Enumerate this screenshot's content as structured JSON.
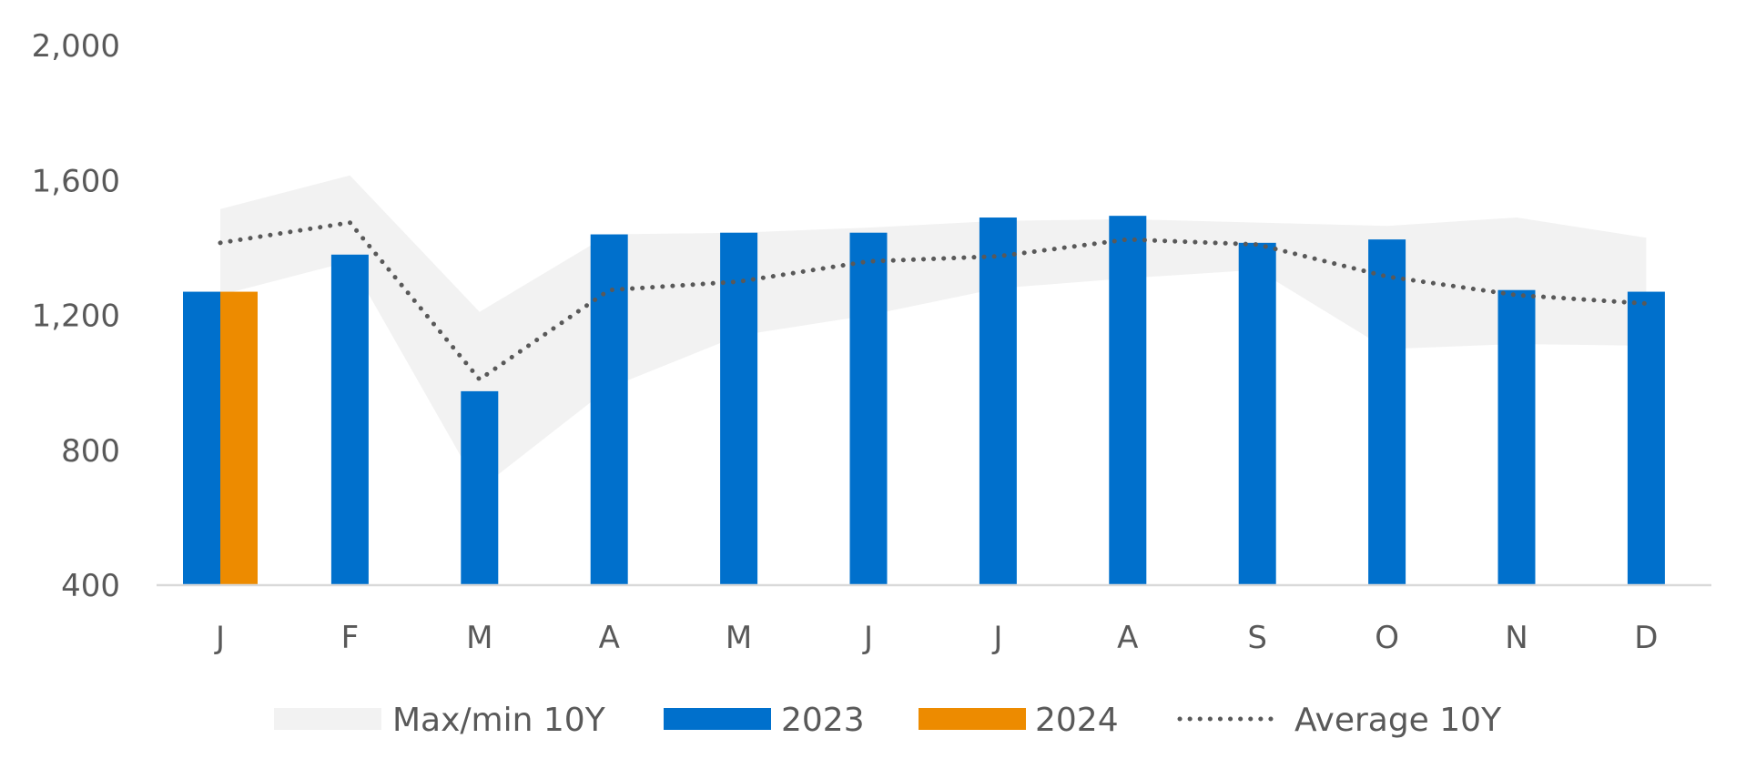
{
  "chart_data": {
    "type": "bar",
    "categories": [
      "J",
      "F",
      "M",
      "A",
      "M",
      "J",
      "J",
      "A",
      "S",
      "O",
      "N",
      "D"
    ],
    "ylim": [
      400,
      2000
    ],
    "yticks": [
      400,
      800,
      1200,
      1600,
      2000
    ],
    "ytick_labels": [
      "400",
      "800",
      "1,200",
      "1,600",
      "2,000"
    ],
    "grid": false,
    "legend_position": "bottom",
    "band": {
      "name": "Max/min 10Y",
      "color": "#f2f2f2",
      "max": [
        1515,
        1615,
        1210,
        1440,
        1445,
        1460,
        1480,
        1485,
        1475,
        1465,
        1490,
        1430
      ],
      "min": [
        1260,
        1360,
        685,
        985,
        1140,
        1200,
        1280,
        1310,
        1335,
        1100,
        1115,
        1110
      ]
    },
    "series": [
      {
        "name": "2023",
        "type": "bar",
        "color": "#0070cc",
        "values": [
          1270,
          1380,
          975,
          1440,
          1445,
          1445,
          1490,
          1495,
          1415,
          1425,
          1275,
          1270
        ]
      },
      {
        "name": "2024",
        "type": "bar",
        "color": "#ed8b00",
        "values": [
          1270,
          null,
          null,
          null,
          null,
          null,
          null,
          null,
          null,
          null,
          null,
          null
        ]
      },
      {
        "name": "Average 10Y",
        "type": "line",
        "style": "dotted",
        "color": "#595959",
        "values": [
          1415,
          1475,
          1010,
          1275,
          1300,
          1360,
          1375,
          1425,
          1410,
          1315,
          1260,
          1235
        ]
      }
    ]
  }
}
